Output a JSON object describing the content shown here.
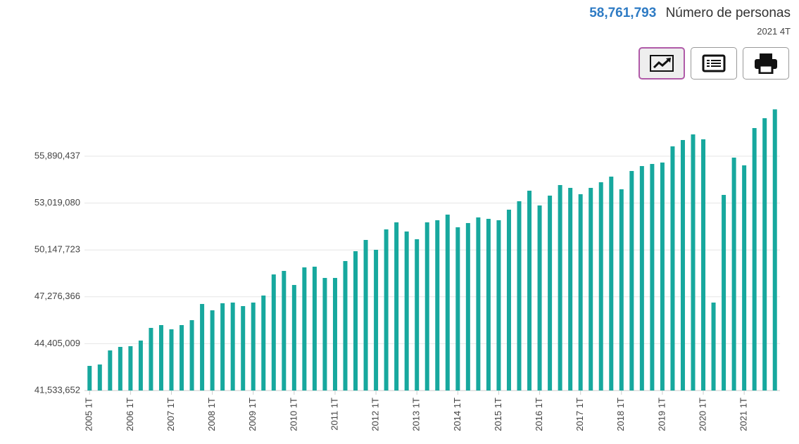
{
  "header": {
    "value": "58,761,793",
    "label": "Número de personas",
    "period": "2021 4T"
  },
  "chart_data": {
    "type": "bar",
    "color": "#17a89e",
    "grid": true,
    "categories": [
      "2005 1T",
      null,
      null,
      null,
      "2006 1T",
      null,
      null,
      null,
      "2007 1T",
      null,
      null,
      null,
      "2008 1T",
      null,
      null,
      null,
      "2009 1T",
      null,
      null,
      null,
      "2010 1T",
      null,
      null,
      null,
      "2011 1T",
      null,
      null,
      null,
      "2012 1T",
      null,
      null,
      null,
      "2013 1T",
      null,
      null,
      null,
      "2014 1T",
      null,
      null,
      null,
      "2015 1T",
      null,
      null,
      null,
      "2016 1T",
      null,
      null,
      null,
      "2017 1T",
      null,
      null,
      null,
      "2018 1T",
      null,
      null,
      null,
      "2019 1T",
      null,
      null,
      null,
      "2020 1T",
      null,
      null,
      null,
      "2021 1T",
      null,
      null,
      null
    ],
    "values": [
      43043000,
      43129000,
      43991000,
      44207000,
      44250000,
      44595000,
      45371000,
      45543000,
      45285000,
      45543000,
      45845000,
      46837000,
      46449000,
      46880000,
      46923000,
      46707000,
      46923000,
      47354000,
      48647000,
      48863000,
      48001000,
      49079000,
      49122000,
      48432000,
      48432000,
      49467000,
      50070000,
      50760000,
      50156000,
      51407000,
      51838000,
      51277000,
      50803000,
      51838000,
      51967000,
      52312000,
      51536000,
      51795000,
      52140000,
      52053000,
      51967000,
      52614000,
      53131000,
      53778000,
      52873000,
      53476000,
      54123000,
      53950000,
      53562000,
      53950000,
      54295000,
      54640000,
      53864000,
      54985000,
      55287000,
      55416000,
      55503000,
      56494000,
      56882000,
      57227000,
      56925000,
      46923000,
      53519000,
      55804000,
      55330000,
      57615000,
      58219000,
      58761793
    ],
    "ylim": [
      41533652,
      58761793
    ],
    "yticks": [
      {
        "value": 41533652,
        "label": "41,533,652"
      },
      {
        "value": 44405009,
        "label": "44,405,009"
      },
      {
        "value": 47276366,
        "label": "47,276,366"
      },
      {
        "value": 50147723,
        "label": "50,147,723"
      },
      {
        "value": 53019080,
        "label": "53,019,080"
      },
      {
        "value": 55890437,
        "label": "55,890,437"
      }
    ]
  }
}
